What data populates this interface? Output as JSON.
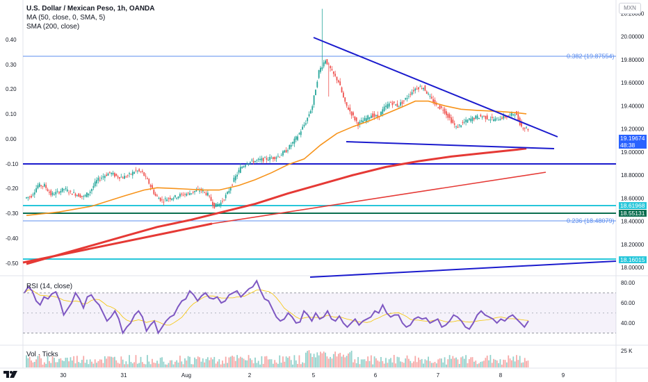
{
  "legend": {
    "title": "U.S. Dollar / Mexican Peso, 1h, OANDA",
    "ma": "MA (50, close, 0, SMA, 5)",
    "sma": "SMA (200, close)"
  },
  "currency": "MXN",
  "rsi_label": "RSI (14, close)",
  "vol_label": "Vol · Ticks",
  "fib_labels": {
    "f382": "0.382 (19.87554)",
    "f236": "0.236 (18.48079)"
  },
  "price_tags": {
    "last_price": "19.19674",
    "countdown": "48:38",
    "level_a": "18.61968",
    "level_b": "18.55131",
    "level_c": "18.16015"
  },
  "colors": {
    "up": "#26a69a",
    "down": "#ef5350",
    "ma50": "#f7931a",
    "sma200": "#e53935",
    "trend": "#1a1acd",
    "cyan": "#26c6da",
    "rsi": "#7e57c2",
    "fib": "#5b8def"
  },
  "chart_data": [
    {
      "type": "line",
      "title": "U.S. Dollar / Mexican Peso, 1h, OANDA",
      "x": [
        "30",
        "31",
        "Aug",
        "2",
        "5",
        "6",
        "7",
        "8",
        "9"
      ],
      "right_axis": {
        "ticks": [
          20.2,
          20.0,
          19.8,
          19.6,
          19.4,
          19.2,
          19.0,
          18.8,
          18.6,
          18.4,
          18.2,
          18.0
        ],
        "labels": [
          "20.20000",
          "20.00000",
          "19.80000",
          "19.60000",
          "19.40000",
          "19.20000",
          "19.00000",
          "18.80000",
          "18.60000",
          "18.40000",
          "18.20000",
          "18.00000"
        ],
        "range": [
          17.94,
          20.28
        ]
      },
      "left_axis": {
        "ticks": [
          0.4,
          0.3,
          0.2,
          0.1,
          0.0,
          -0.1,
          -0.2,
          -0.3,
          -0.4,
          -0.5
        ],
        "labels": [
          "0.40",
          "0.30",
          "0.20",
          "0.10",
          "0.00",
          "-0.10",
          "-0.20",
          "-0.30",
          "-0.40",
          "-0.50"
        ]
      },
      "price_path": [
        [
          0,
          18.6
        ],
        [
          4,
          18.62
        ],
        [
          8,
          18.71
        ],
        [
          12,
          18.71
        ],
        [
          16,
          18.63
        ],
        [
          20,
          18.65
        ],
        [
          24,
          18.68
        ],
        [
          28,
          18.65
        ],
        [
          32,
          18.63
        ],
        [
          36,
          18.61
        ],
        [
          40,
          18.66
        ],
        [
          44,
          18.75
        ],
        [
          48,
          18.79
        ],
        [
          52,
          18.82
        ],
        [
          56,
          18.79
        ],
        [
          60,
          18.78
        ],
        [
          64,
          18.8
        ],
        [
          68,
          18.84
        ],
        [
          72,
          18.82
        ],
        [
          76,
          18.73
        ],
        [
          80,
          18.62
        ],
        [
          84,
          18.58
        ],
        [
          88,
          18.6
        ],
        [
          92,
          18.61
        ],
        [
          96,
          18.63
        ],
        [
          100,
          18.64
        ],
        [
          104,
          18.66
        ],
        [
          108,
          18.67
        ],
        [
          112,
          18.63
        ],
        [
          116,
          18.53
        ],
        [
          120,
          18.56
        ],
        [
          124,
          18.64
        ],
        [
          128,
          18.76
        ],
        [
          132,
          18.86
        ],
        [
          136,
          18.91
        ],
        [
          140,
          18.92
        ],
        [
          144,
          18.93
        ],
        [
          148,
          18.94
        ],
        [
          152,
          18.95
        ],
        [
          156,
          18.97
        ],
        [
          160,
          19.01
        ],
        [
          164,
          19.08
        ],
        [
          168,
          19.16
        ],
        [
          172,
          19.26
        ],
        [
          176,
          19.4
        ],
        [
          180,
          19.7
        ],
        [
          184,
          19.8
        ],
        [
          188,
          19.69
        ],
        [
          192,
          19.61
        ],
        [
          196,
          19.42
        ],
        [
          200,
          19.33
        ],
        [
          204,
          19.24
        ],
        [
          208,
          19.28
        ],
        [
          212,
          19.32
        ],
        [
          216,
          19.3
        ],
        [
          220,
          19.38
        ],
        [
          224,
          19.43
        ],
        [
          228,
          19.4
        ],
        [
          232,
          19.44
        ],
        [
          236,
          19.51
        ],
        [
          240,
          19.56
        ],
        [
          244,
          19.56
        ],
        [
          248,
          19.47
        ],
        [
          252,
          19.4
        ],
        [
          256,
          19.37
        ],
        [
          260,
          19.29
        ],
        [
          264,
          19.21
        ],
        [
          268,
          19.25
        ],
        [
          272,
          19.28
        ],
        [
          276,
          19.3
        ],
        [
          280,
          19.31
        ],
        [
          284,
          19.29
        ],
        [
          288,
          19.28
        ],
        [
          292,
          19.3
        ],
        [
          296,
          19.31
        ],
        [
          300,
          19.34
        ],
        [
          304,
          19.22
        ],
        [
          308,
          19.2
        ]
      ],
      "ma50_path": [
        [
          0,
          18.45
        ],
        [
          20,
          18.48
        ],
        [
          40,
          18.53
        ],
        [
          60,
          18.62
        ],
        [
          72,
          18.67
        ],
        [
          80,
          18.69
        ],
        [
          96,
          18.68
        ],
        [
          108,
          18.67
        ],
        [
          118,
          18.67
        ],
        [
          130,
          18.71
        ],
        [
          140,
          18.76
        ],
        [
          150,
          18.82
        ],
        [
          160,
          18.89
        ],
        [
          170,
          18.94
        ],
        [
          180,
          19.06
        ],
        [
          190,
          19.16
        ],
        [
          200,
          19.22
        ],
        [
          210,
          19.27
        ],
        [
          220,
          19.33
        ],
        [
          230,
          19.39
        ],
        [
          238,
          19.44
        ],
        [
          246,
          19.44
        ],
        [
          256,
          19.4
        ],
        [
          266,
          19.37
        ],
        [
          276,
          19.36
        ],
        [
          290,
          19.35
        ],
        [
          300,
          19.34
        ],
        [
          306,
          19.33
        ]
      ],
      "sma200_path": [
        [
          0,
          18.03
        ],
        [
          20,
          18.11
        ],
        [
          40,
          18.19
        ],
        [
          60,
          18.27
        ],
        [
          80,
          18.35
        ],
        [
          100,
          18.41
        ],
        [
          120,
          18.48
        ],
        [
          140,
          18.55
        ],
        [
          160,
          18.64
        ],
        [
          180,
          18.72
        ],
        [
          200,
          18.8
        ],
        [
          220,
          18.87
        ],
        [
          240,
          18.92
        ],
        [
          260,
          18.96
        ],
        [
          280,
          18.99
        ],
        [
          300,
          19.02
        ],
        [
          306,
          19.03
        ]
      ],
      "series": []
    },
    {
      "type": "line",
      "title": "RSI (14, close)",
      "ylim": [
        20,
        85
      ],
      "ticks": [
        80.0,
        60.0,
        40.0
      ],
      "tick_labels": [
        "80.00",
        "60.00",
        "40.00"
      ],
      "bands": [
        70,
        30
      ],
      "rsi_values": [
        70,
        76,
        72,
        62,
        58,
        66,
        64,
        69,
        71,
        62,
        48,
        54,
        60,
        70,
        64,
        55,
        66,
        68,
        62,
        58,
        50,
        42,
        46,
        52,
        44,
        30,
        36,
        40,
        48,
        52,
        46,
        32,
        38,
        42,
        30,
        36,
        42,
        46,
        48,
        56,
        62,
        64,
        72,
        68,
        62,
        67,
        70,
        65,
        64,
        66,
        60,
        62,
        68,
        70,
        72,
        66,
        70,
        74,
        76,
        82,
        72,
        64,
        62,
        54,
        46,
        42,
        44,
        50,
        46,
        40,
        41,
        52,
        48,
        42,
        50,
        44,
        46,
        52,
        44,
        42,
        47,
        40,
        36,
        40,
        44,
        38,
        42,
        44,
        46,
        52,
        50,
        58,
        50,
        46,
        48,
        48,
        40,
        36,
        38,
        44,
        46,
        44,
        45,
        40,
        42,
        44,
        36,
        38,
        42,
        48,
        46,
        42,
        36,
        34,
        40,
        48,
        52,
        48,
        46,
        44,
        40,
        44,
        42,
        46,
        48,
        44,
        40,
        36,
        42
      ]
    },
    {
      "type": "bar",
      "title": "Vol · Ticks",
      "ticks": [
        "25 K"
      ]
    }
  ]
}
